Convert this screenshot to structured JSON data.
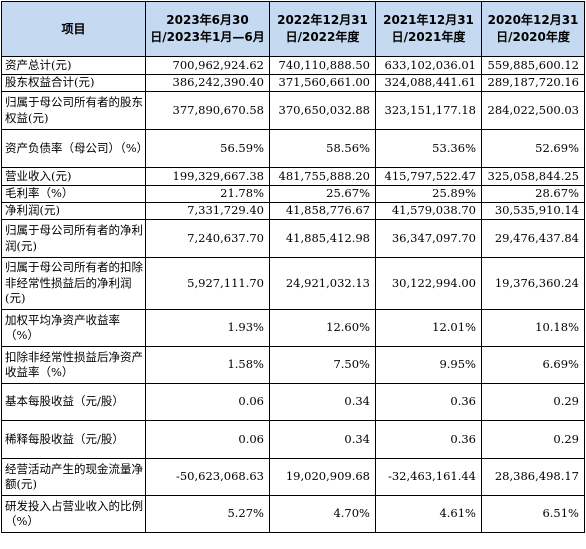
{
  "table": {
    "headers": [
      "项目",
      "2023年6月30日/2023年1月—6月",
      "2022年12月31日/2022年度",
      "2021年12月31日/2021年度",
      "2020年12月31日/2020年度"
    ],
    "rows": [
      {
        "label": "资产总计(元)",
        "values": [
          "700,962,924.62",
          "740,110,888.50",
          "633,102,036.01",
          "559,885,600.12"
        ]
      },
      {
        "label": "股东权益合计(元)",
        "values": [
          "386,242,390.40",
          "371,560,661.00",
          "324,088,441.61",
          "289,187,720.16"
        ]
      },
      {
        "label": "归属于母公司所有者的股东权益(元)",
        "values": [
          "377,890,670.58",
          "370,650,032.88",
          "323,151,177.18",
          "284,022,500.03"
        ]
      },
      {
        "label": "资产负债率（母公司）（%）",
        "values": [
          "56.59%",
          "58.56%",
          "53.36%",
          "52.69%"
        ]
      },
      {
        "label": "营业收入(元)",
        "values": [
          "199,329,667.38",
          "481,755,888.20",
          "415,797,522.47",
          "325,058,844.25"
        ]
      },
      {
        "label": "毛利率（%）",
        "values": [
          "21.78%",
          "25.67%",
          "25.89%",
          "28.67%"
        ]
      },
      {
        "label": "净利润(元)",
        "values": [
          "7,331,729.40",
          "41,858,776.67",
          "41,579,038.70",
          "30,535,910.14"
        ]
      },
      {
        "label": "归属于母公司所有者的净利润(元)",
        "values": [
          "7,240,637.70",
          "41,885,412.98",
          "36,347,097.70",
          "29,476,437.84"
        ]
      },
      {
        "label": "归属于母公司所有者的扣除非经常性损益后的净利润(元)",
        "values": [
          "5,927,111.70",
          "24,921,032.13",
          "30,122,994.00",
          "19,376,360.24"
        ]
      },
      {
        "label": "加权平均净资产收益率（%）",
        "values": [
          "1.93%",
          "12.60%",
          "12.01%",
          "10.18%"
        ]
      },
      {
        "label": "扣除非经常性损益后净资产收益率（%）",
        "values": [
          "1.58%",
          "7.50%",
          "9.95%",
          "6.69%"
        ]
      },
      {
        "label": "基本每股收益（元/股）",
        "values": [
          "0.06",
          "0.34",
          "0.36",
          "0.29"
        ]
      },
      {
        "label": "稀释每股收益（元/股）",
        "values": [
          "0.06",
          "0.34",
          "0.36",
          "0.29"
        ]
      },
      {
        "label": "经营活动产生的现金流量净额(元)",
        "values": [
          "-50,623,068.63",
          "19,020,909.68",
          "-32,463,161.44",
          "28,386,498.17"
        ]
      },
      {
        "label": "研发投入占营业收入的比例（%）",
        "values": [
          "5.27%",
          "4.70%",
          "4.61%",
          "6.51%"
        ]
      }
    ]
  }
}
